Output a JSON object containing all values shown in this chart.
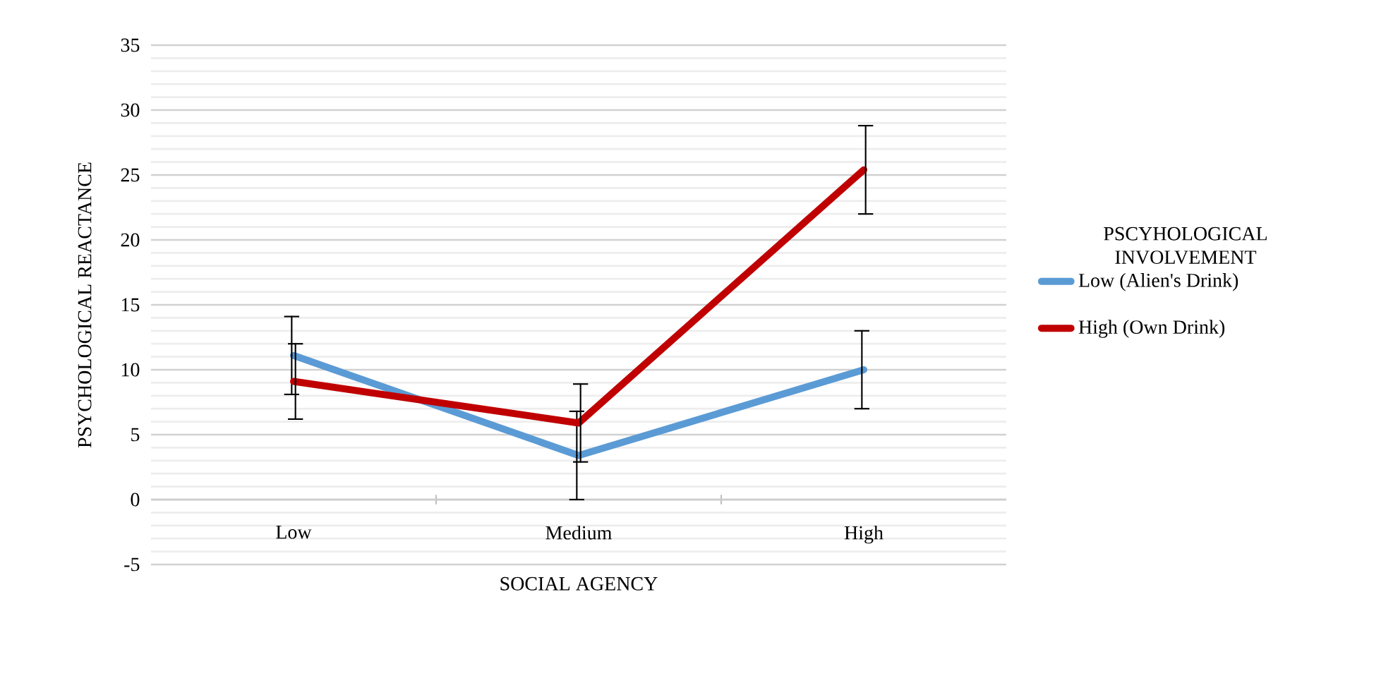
{
  "chart_data": {
    "type": "line",
    "xlabel": "SOCIAL AGENCY",
    "ylabel": "PSYCHOLOGICAL REACTANCE",
    "legend_title": "PSCYHOLOGICAL INVOLVEMENT",
    "categories": [
      "Low",
      "Medium",
      "High"
    ],
    "series": [
      {
        "name": "Low (Alien's Drink)",
        "color": "#5b9bd5",
        "values": [
          11.1,
          3.4,
          10.0
        ],
        "errors": [
          3,
          3.4,
          3
        ]
      },
      {
        "name": "High (Own Drink)",
        "color": "#c00000",
        "values": [
          9.1,
          5.9,
          25.4
        ],
        "errors": [
          2.9,
          3,
          3.4
        ]
      }
    ],
    "ylim": [
      -5,
      35
    ],
    "yticks": [
      -5,
      0,
      5,
      10,
      15,
      20,
      25,
      30,
      35
    ],
    "grid": "y",
    "legend": "right",
    "marker": "none",
    "line_style": "solid"
  }
}
